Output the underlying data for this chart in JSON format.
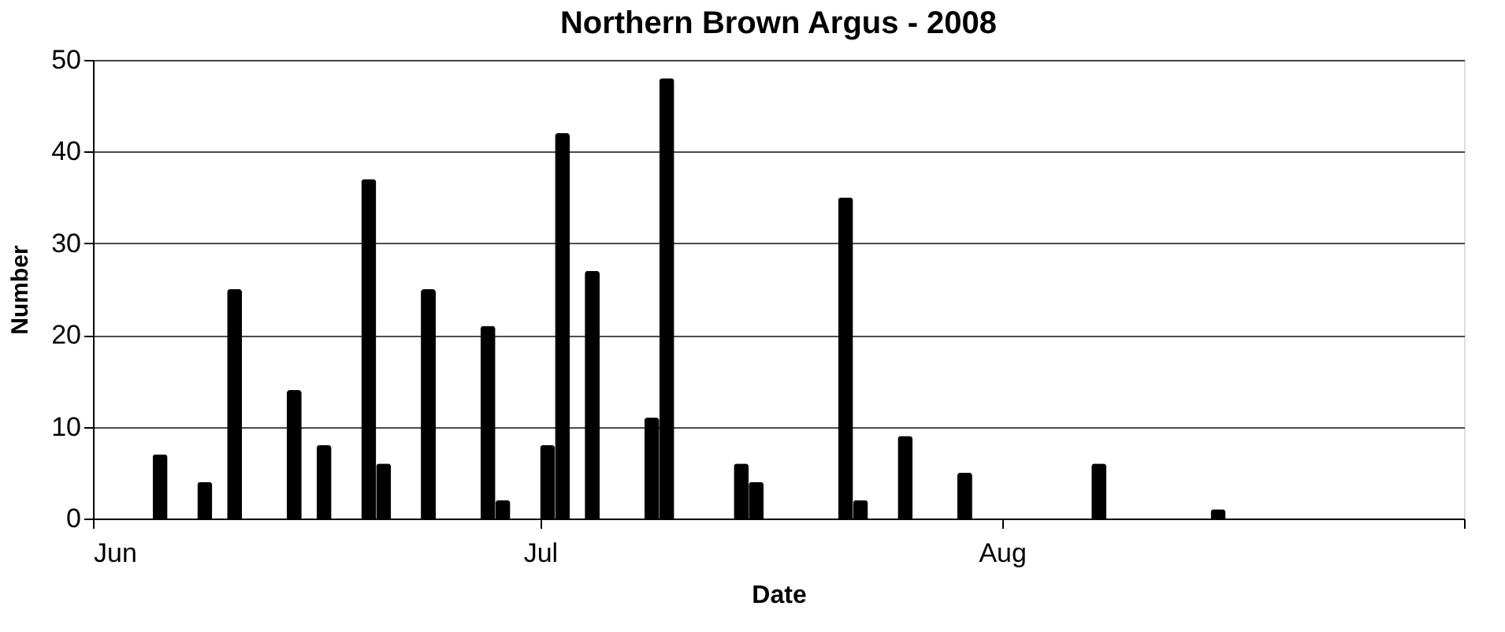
{
  "chart_data": {
    "type": "bar",
    "title": "Northern Brown Argus - 2008",
    "xlabel": "Date",
    "ylabel": "Number",
    "x": [
      "2008-06-05",
      "2008-06-08",
      "2008-06-10",
      "2008-06-14",
      "2008-06-16",
      "2008-06-19",
      "2008-06-20",
      "2008-06-23",
      "2008-06-27",
      "2008-06-28",
      "2008-07-01",
      "2008-07-02",
      "2008-07-04",
      "2008-07-08",
      "2008-07-09",
      "2008-07-14",
      "2008-07-15",
      "2008-07-21",
      "2008-07-22",
      "2008-07-25",
      "2008-07-29",
      "2008-08-07",
      "2008-08-15"
    ],
    "values": [
      7,
      4,
      25,
      14,
      8,
      37,
      6,
      25,
      21,
      2,
      8,
      42,
      27,
      11,
      48,
      6,
      4,
      35,
      2,
      9,
      5,
      6,
      1
    ],
    "color": "#000000",
    "xlim": [
      "2008-06-01",
      "2008-09-01"
    ],
    "xticks": [
      {
        "value": "2008-06-01",
        "label": "Jun"
      },
      {
        "value": "2008-07-01",
        "label": "Jul"
      },
      {
        "value": "2008-08-01",
        "label": "Aug"
      },
      {
        "value": "2008-09-01",
        "label": null
      }
    ],
    "ylim": [
      0,
      50
    ],
    "yticks": [
      0,
      10,
      20,
      30,
      40,
      50
    ],
    "grid": "y"
  }
}
